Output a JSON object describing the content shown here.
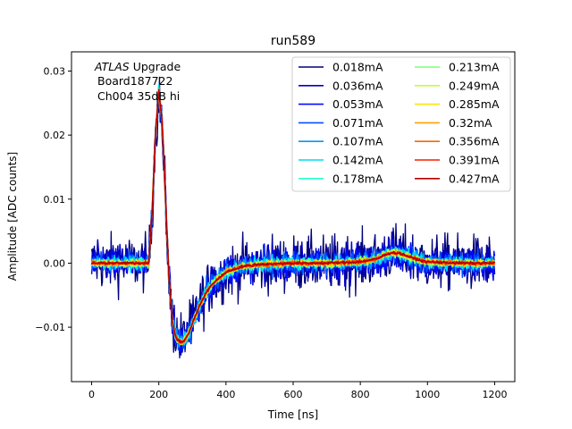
{
  "chart_data": {
    "type": "line",
    "title": "run589",
    "xlabel": "Time [ns]",
    "ylabel": "Amplitude [ADC counts]",
    "xlim": [
      -60,
      1260
    ],
    "ylim": [
      -0.0185,
      0.033
    ],
    "xticks": [
      0,
      200,
      400,
      600,
      800,
      1000,
      1200
    ],
    "xtick_labels": [
      "0",
      "200",
      "400",
      "600",
      "800",
      "1000",
      "1200"
    ],
    "yticks": [
      -0.01,
      0.0,
      0.01,
      0.02,
      0.03
    ],
    "ytick_labels": [
      "−0.01",
      "0.00",
      "0.01",
      "0.02",
      "0.03"
    ],
    "annotation": {
      "line1_italic": "ATLAS",
      "line1_rest": " Upgrade",
      "line2": "Board187722",
      "line3": "Ch004 35dB hi"
    },
    "legend_position": "upper right",
    "pulse_shape": {
      "x": [
        0,
        170,
        180,
        190,
        200,
        210,
        220,
        230,
        240,
        250,
        260,
        270,
        280,
        290,
        300,
        320,
        340,
        360,
        400,
        450,
        500,
        600,
        700,
        800,
        850,
        870,
        890,
        910,
        930,
        950,
        980,
        1000,
        1050,
        1100,
        1200
      ],
      "y": [
        0.0,
        0.0,
        0.008,
        0.02,
        0.027,
        0.022,
        0.01,
        -0.002,
        -0.009,
        -0.0115,
        -0.0122,
        -0.0123,
        -0.0118,
        -0.0108,
        -0.0094,
        -0.0068,
        -0.0047,
        -0.0032,
        -0.0014,
        -0.0005,
        -0.0002,
        0.0,
        0.0,
        0.0002,
        0.0007,
        0.0012,
        0.0016,
        0.0016,
        0.0013,
        0.0009,
        0.0004,
        0.0002,
        0.0001,
        0.0,
        0.0
      ]
    },
    "series": [
      {
        "name": "0.018mA",
        "color": "#00007f",
        "scale": 0.97,
        "noise": 0.0022
      },
      {
        "name": "0.036mA",
        "color": "#0000c4",
        "scale": 0.98,
        "noise": 0.0015
      },
      {
        "name": "0.053mA",
        "color": "#000cff",
        "scale": 0.985,
        "noise": 0.0011
      },
      {
        "name": "0.071mA",
        "color": "#0050ff",
        "scale": 0.99,
        "noise": 0.0009
      },
      {
        "name": "0.107mA",
        "color": "#0098ff",
        "scale": 0.995,
        "noise": 0.0007
      },
      {
        "name": "0.142mA",
        "color": "#00dcf0",
        "scale": 1.0,
        "noise": 0.0005
      },
      {
        "name": "0.178mA",
        "color": "#2affcd",
        "scale": 1.0,
        "noise": 0.0004
      },
      {
        "name": "0.213mA",
        "color": "#7dff7a",
        "scale": 1.0,
        "noise": 0.0003
      },
      {
        "name": "0.249mA",
        "color": "#c1ff36",
        "scale": 1.0,
        "noise": 0.0003
      },
      {
        "name": "0.285mA",
        "color": "#ffe500",
        "scale": 1.0,
        "noise": 0.00025
      },
      {
        "name": "0.32mA",
        "color": "#ffa300",
        "scale": 1.0,
        "noise": 0.0002
      },
      {
        "name": "0.356mA",
        "color": "#ff6400",
        "scale": 1.0,
        "noise": 0.0002
      },
      {
        "name": "0.391mA",
        "color": "#f51f00",
        "scale": 1.0,
        "noise": 0.00015
      },
      {
        "name": "0.427mA",
        "color": "#b20000",
        "scale": 1.0,
        "noise": 0.0001
      }
    ]
  }
}
